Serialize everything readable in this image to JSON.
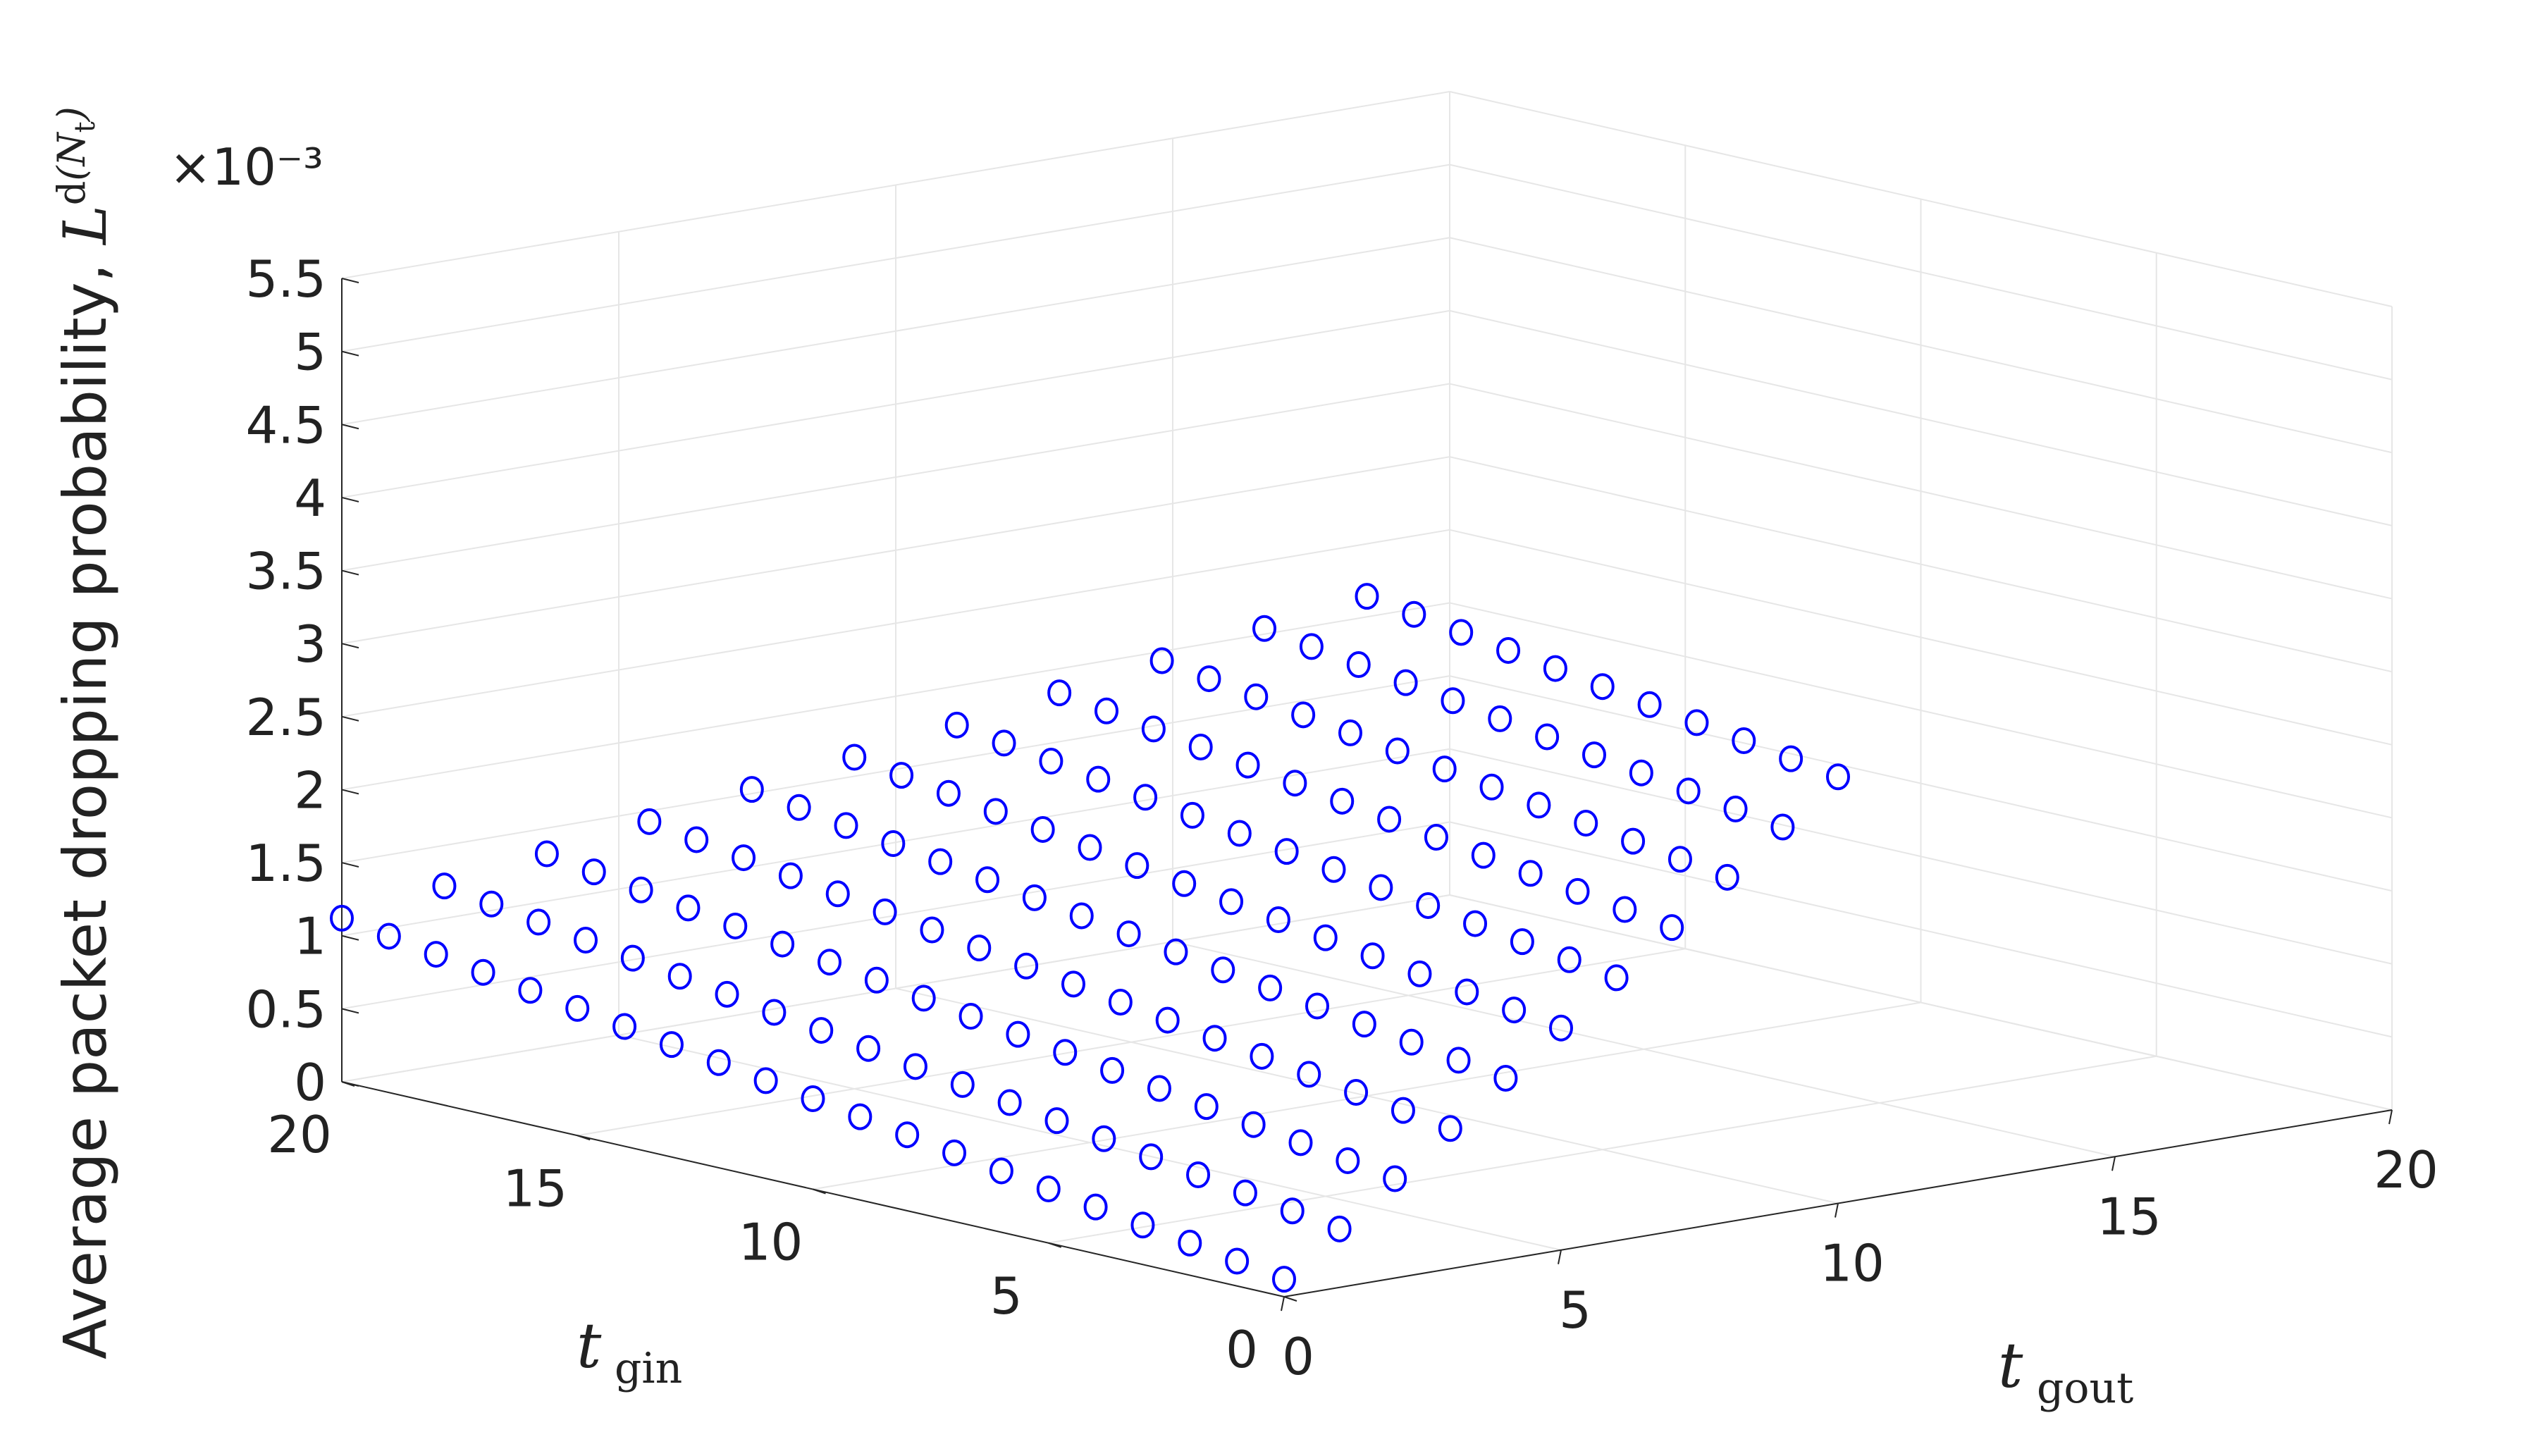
{
  "chart_data": {
    "type": "scatter3d",
    "title": "",
    "xlabel": "t_gout",
    "ylabel": "t_gin",
    "zlabel": "Average packet dropping probability, L̄^d(N_t)",
    "zlabel_text": "Average packet dropping probability,",
    "x_label_parts": {
      "base": "t",
      "sub": "gout"
    },
    "y_label_parts": {
      "base": "t",
      "sub": "gin"
    },
    "z_exponent": "×10⁻³",
    "xlim": [
      0,
      20
    ],
    "ylim": [
      0,
      20
    ],
    "zlim": [
      0,
      5.5
    ],
    "x_ticks": [
      "0",
      "5",
      "10",
      "15",
      "20"
    ],
    "y_ticks": [
      "0",
      "5",
      "10",
      "15",
      "20"
    ],
    "z_ticks": [
      "0",
      "0.5",
      "1",
      "1.5",
      "2",
      "2.5",
      "3",
      "3.5",
      "4",
      "4.5",
      "5",
      "5.5"
    ],
    "grid": true,
    "marker": "circle-open",
    "model": {
      "z_at_origin": 0.12,
      "z_per_gout": 0.28,
      "z_per_gin": 0.05,
      "threshold": 3.5
    },
    "series": [
      {
        "color": "#0000ff",
        "rule": "z < 3.5"
      },
      {
        "color": "#ff0000",
        "rule": "z >= 3.5"
      }
    ]
  }
}
